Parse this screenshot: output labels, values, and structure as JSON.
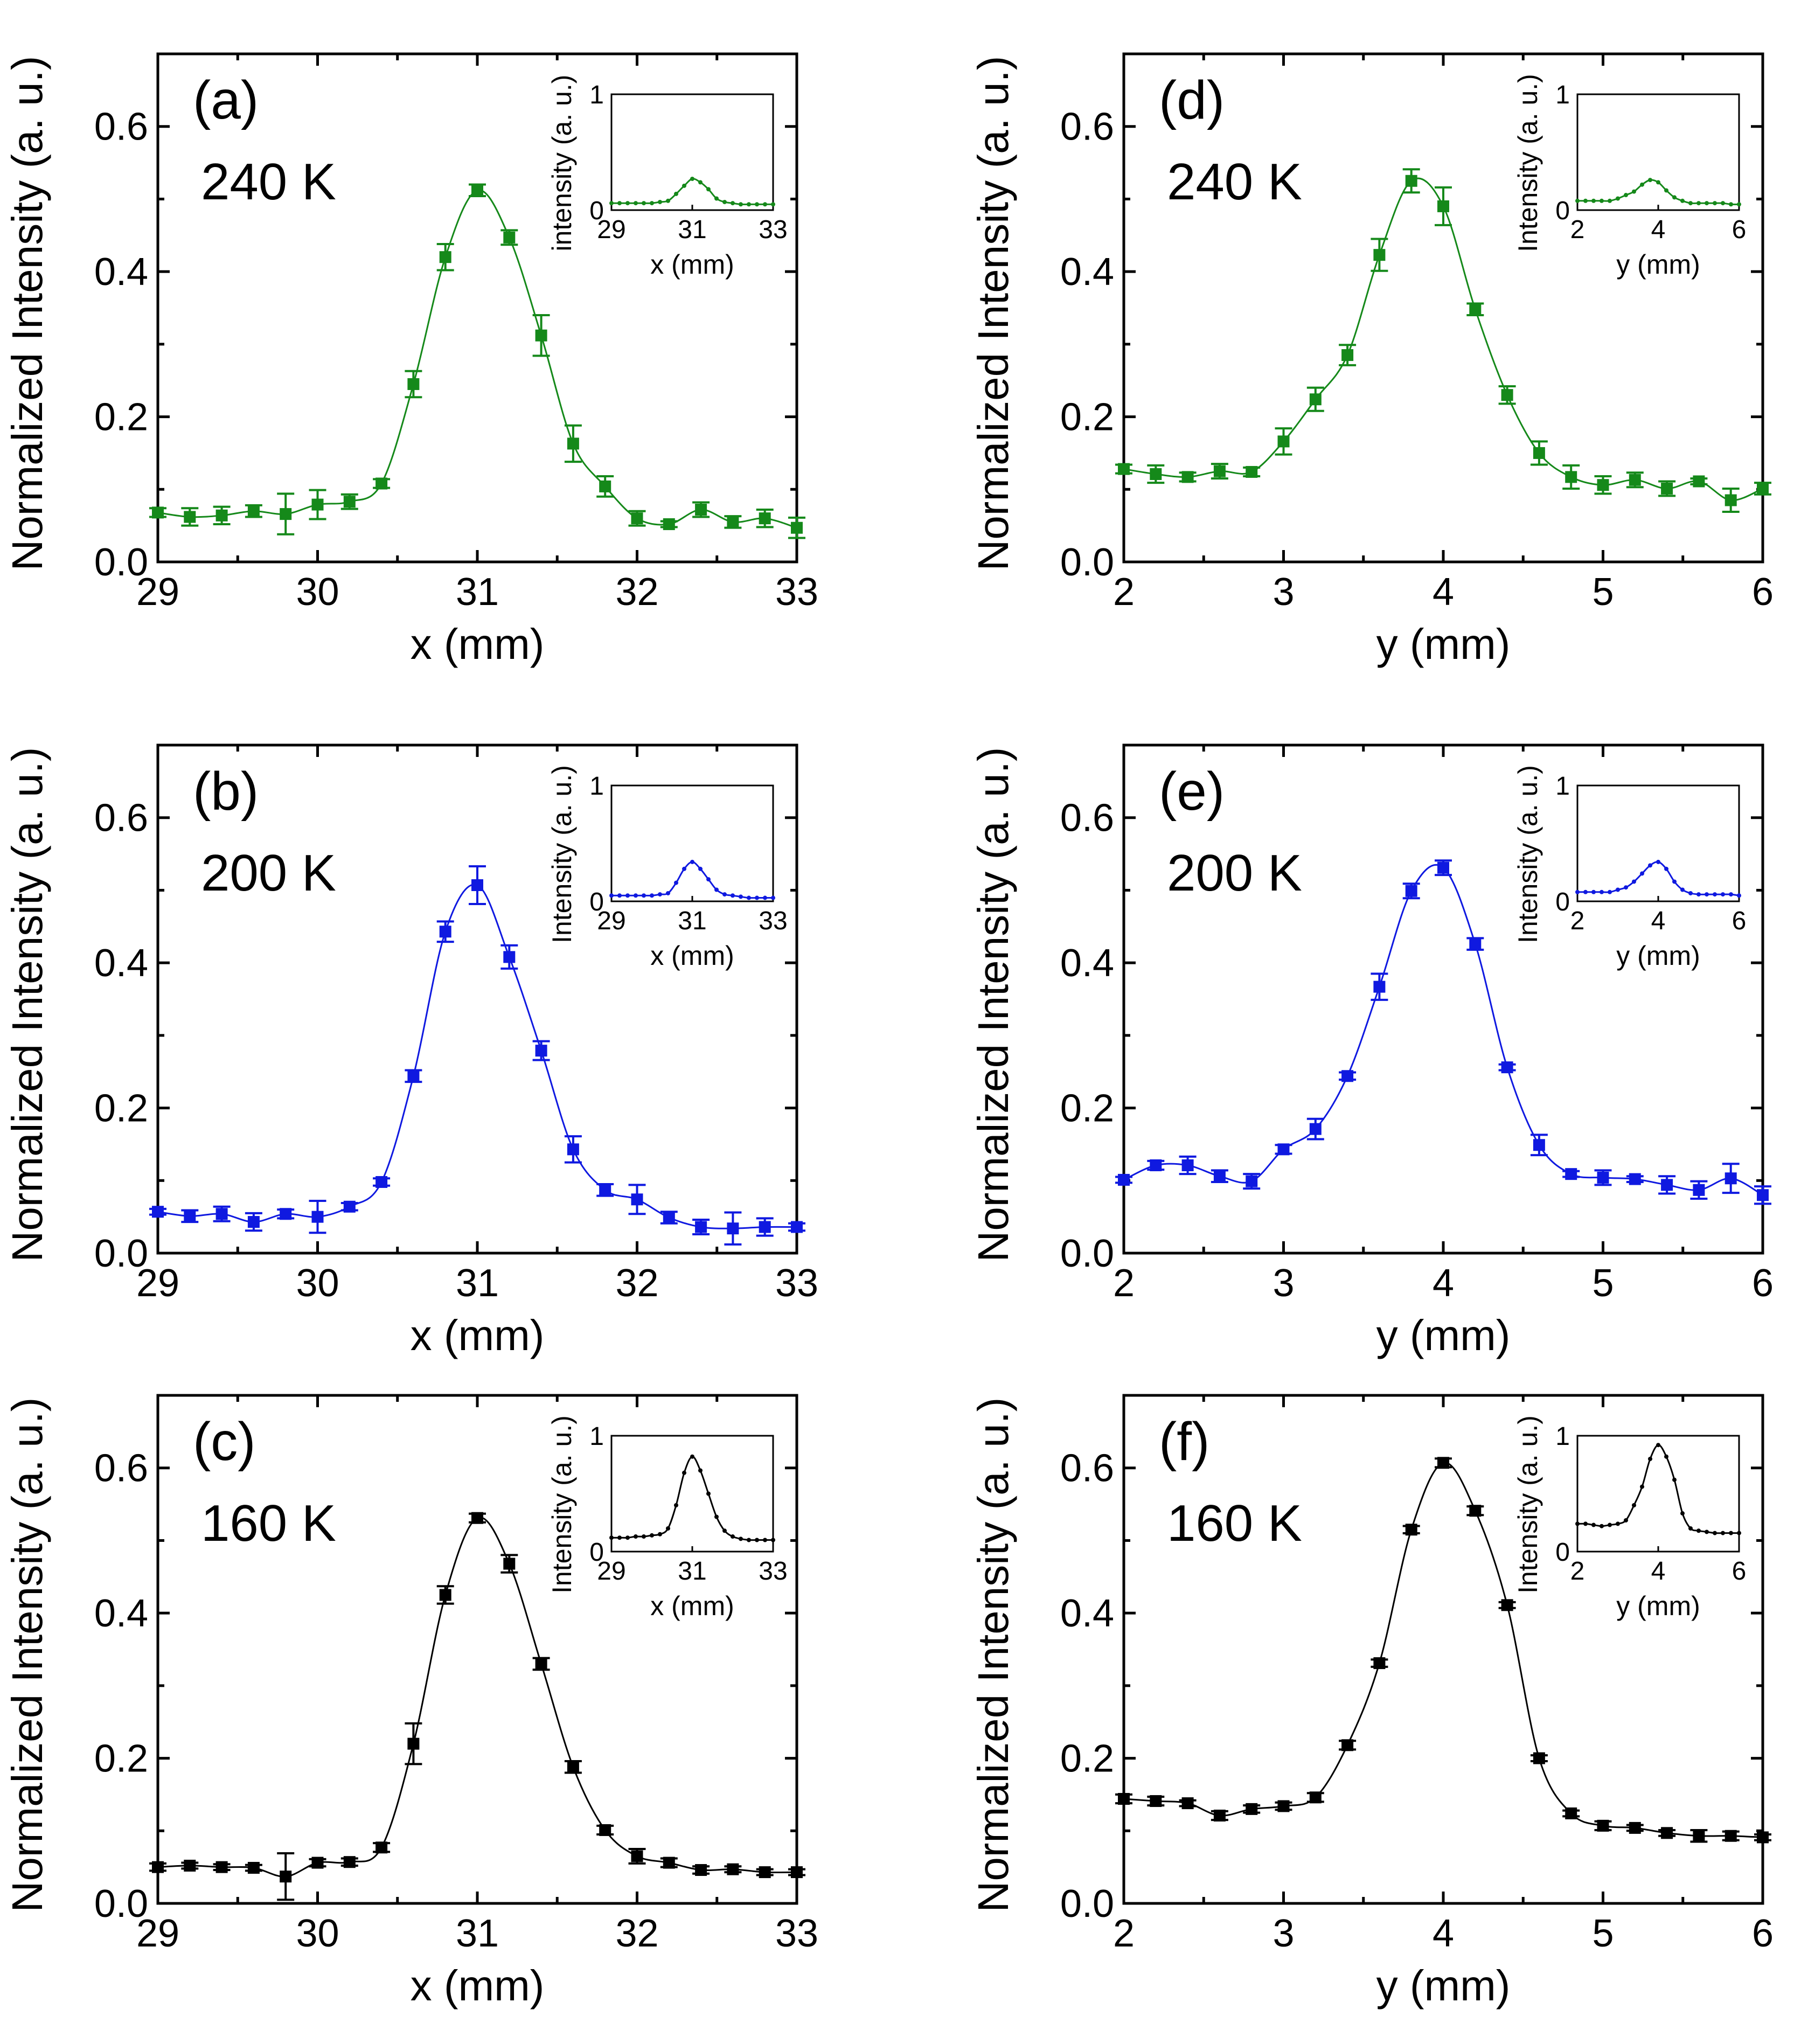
{
  "figure": {
    "colors": {
      "240 K": "#15891a",
      "200 K": "#0f19e0",
      "160 K": "#000000"
    },
    "main_ylabel": "Normalized Intensity (a. u.)"
  },
  "chart_data": [
    {
      "id": "a",
      "tag": "(a)",
      "type": "scatter",
      "temperature": "240 K",
      "color": "#15891a",
      "xlabel": "x (mm)",
      "ylabel": "Normalized Intensity (a. u.)",
      "xlim": [
        29,
        33
      ],
      "ylim": [
        0,
        0.7
      ],
      "xticks": [
        "29",
        "30",
        "31",
        "32",
        "33"
      ],
      "yticks": [
        "0.0",
        "0.2",
        "0.4",
        "0.6"
      ],
      "x": [
        29.0,
        29.2,
        29.4,
        29.6,
        29.8,
        30.0,
        30.2,
        30.4,
        30.6,
        30.8,
        31.0,
        31.2,
        31.4,
        31.6,
        31.8,
        32.0,
        32.2,
        32.4,
        32.6,
        32.8,
        33.0
      ],
      "y": [
        0.068,
        0.062,
        0.064,
        0.07,
        0.066,
        0.079,
        0.083,
        0.108,
        0.245,
        0.42,
        0.512,
        0.447,
        0.312,
        0.163,
        0.104,
        0.06,
        0.052,
        0.072,
        0.055,
        0.06,
        0.047
      ],
      "yerr": [
        0.006,
        0.012,
        0.012,
        0.008,
        0.028,
        0.02,
        0.01,
        0.006,
        0.018,
        0.018,
        0.008,
        0.01,
        0.028,
        0.025,
        0.014,
        0.01,
        0.004,
        0.01,
        0.008,
        0.012,
        0.014
      ],
      "inset": {
        "xlabel": "x (mm)",
        "ylabel": "intensity (a. u.)",
        "xlim": [
          29,
          33
        ],
        "ylim": [
          0,
          1
        ],
        "xticks": [
          "29",
          "31",
          "33"
        ],
        "yticks": [
          "0",
          "1"
        ],
        "y": [
          0.06,
          0.06,
          0.06,
          0.06,
          0.06,
          0.06,
          0.07,
          0.08,
          0.14,
          0.21,
          0.27,
          0.24,
          0.18,
          0.1,
          0.07,
          0.06,
          0.05,
          0.05,
          0.05,
          0.05,
          0.05
        ]
      }
    },
    {
      "id": "b",
      "tag": "(b)",
      "type": "scatter",
      "temperature": "200 K",
      "color": "#0f19e0",
      "xlabel": "x (mm)",
      "ylabel": "Normalized Intensity (a. u.)",
      "xlim": [
        29,
        33
      ],
      "ylim": [
        0,
        0.7
      ],
      "xticks": [
        "29",
        "30",
        "31",
        "32",
        "33"
      ],
      "yticks": [
        "0.0",
        "0.2",
        "0.4",
        "0.6"
      ],
      "x": [
        29.0,
        29.2,
        29.4,
        29.6,
        29.8,
        30.0,
        30.2,
        30.4,
        30.6,
        30.8,
        31.0,
        31.2,
        31.4,
        31.6,
        31.8,
        32.0,
        32.2,
        32.4,
        32.6,
        32.8,
        33.0
      ],
      "y": [
        0.057,
        0.051,
        0.054,
        0.043,
        0.054,
        0.05,
        0.064,
        0.098,
        0.244,
        0.443,
        0.507,
        0.408,
        0.279,
        0.143,
        0.087,
        0.074,
        0.049,
        0.036,
        0.034,
        0.036,
        0.036
      ],
      "yerr": [
        0.004,
        0.008,
        0.01,
        0.012,
        0.006,
        0.022,
        0.005,
        0.005,
        0.008,
        0.014,
        0.026,
        0.016,
        0.013,
        0.018,
        0.008,
        0.02,
        0.008,
        0.01,
        0.022,
        0.012,
        0.005
      ],
      "inset": {
        "xlabel": "x (mm)",
        "ylabel": "Intensity (a. u.)",
        "xlim": [
          29,
          33
        ],
        "ylim": [
          0,
          1
        ],
        "xticks": [
          "29",
          "31",
          "33"
        ],
        "yticks": [
          "0",
          "1"
        ],
        "y": [
          0.05,
          0.05,
          0.05,
          0.05,
          0.05,
          0.05,
          0.06,
          0.07,
          0.16,
          0.28,
          0.34,
          0.28,
          0.19,
          0.1,
          0.06,
          0.05,
          0.04,
          0.03,
          0.03,
          0.03,
          0.03
        ]
      }
    },
    {
      "id": "c",
      "tag": "(c)",
      "type": "scatter",
      "temperature": "160 K",
      "color": "#000000",
      "xlabel": "x (mm)",
      "ylabel": "Normalized Intensity (a. u.)",
      "xlim": [
        29,
        33
      ],
      "ylim": [
        0,
        0.7
      ],
      "xticks": [
        "29",
        "30",
        "31",
        "32",
        "33"
      ],
      "yticks": [
        "0.0",
        "0.2",
        "0.4",
        "0.6"
      ],
      "x": [
        29.0,
        29.2,
        29.4,
        29.6,
        29.8,
        30.0,
        30.2,
        30.4,
        30.6,
        30.8,
        31.0,
        31.2,
        31.4,
        31.6,
        31.8,
        32.0,
        32.2,
        32.4,
        32.6,
        32.8,
        33.0
      ],
      "y": [
        0.05,
        0.052,
        0.05,
        0.049,
        0.037,
        0.056,
        0.057,
        0.077,
        0.22,
        0.425,
        0.531,
        0.468,
        0.33,
        0.188,
        0.101,
        0.065,
        0.056,
        0.046,
        0.047,
        0.043,
        0.043
      ],
      "yerr": [
        0.005,
        0.004,
        0.004,
        0.004,
        0.032,
        0.005,
        0.005,
        0.006,
        0.028,
        0.012,
        0.006,
        0.012,
        0.008,
        0.008,
        0.006,
        0.01,
        0.006,
        0.005,
        0.004,
        0.004,
        0.004
      ],
      "inset": {
        "xlabel": "x (mm)",
        "ylabel": "Intensity (a. u.)",
        "xlim": [
          29,
          33
        ],
        "ylim": [
          0,
          1
        ],
        "xticks": [
          "29",
          "31",
          "33"
        ],
        "yticks": [
          "0",
          "1"
        ],
        "y": [
          0.12,
          0.12,
          0.12,
          0.13,
          0.13,
          0.14,
          0.15,
          0.2,
          0.4,
          0.68,
          0.82,
          0.7,
          0.5,
          0.3,
          0.18,
          0.13,
          0.11,
          0.1,
          0.1,
          0.1,
          0.1
        ]
      }
    },
    {
      "id": "d",
      "tag": "(d)",
      "type": "scatter",
      "temperature": "240 K",
      "color": "#15891a",
      "xlabel": "y (mm)",
      "ylabel": "Normalized Intensity (a. u.)",
      "xlim": [
        2,
        6
      ],
      "ylim": [
        0,
        0.7
      ],
      "xticks": [
        "2",
        "3",
        "4",
        "5",
        "6"
      ],
      "yticks": [
        "0.0",
        "0.2",
        "0.4",
        "0.6"
      ],
      "x": [
        2.0,
        2.2,
        2.4,
        2.6,
        2.8,
        3.0,
        3.2,
        3.4,
        3.6,
        3.8,
        4.0,
        4.2,
        4.4,
        4.6,
        4.8,
        5.0,
        5.2,
        5.4,
        5.6,
        5.8,
        6.0
      ],
      "y": [
        0.128,
        0.121,
        0.117,
        0.125,
        0.124,
        0.166,
        0.224,
        0.285,
        0.423,
        0.525,
        0.49,
        0.348,
        0.23,
        0.15,
        0.117,
        0.106,
        0.113,
        0.101,
        0.111,
        0.085,
        0.101
      ],
      "yerr": [
        0.006,
        0.012,
        0.006,
        0.01,
        0.006,
        0.018,
        0.016,
        0.014,
        0.022,
        0.016,
        0.026,
        0.008,
        0.012,
        0.016,
        0.016,
        0.012,
        0.01,
        0.01,
        0.004,
        0.016,
        0.008
      ],
      "inset": {
        "xlabel": "y (mm)",
        "ylabel": "Intensity (a. u.)",
        "xlim": [
          2,
          6
        ],
        "ylim": [
          0,
          1
        ],
        "xticks": [
          "2",
          "4",
          "6"
        ],
        "yticks": [
          "0",
          "1"
        ],
        "y": [
          0.08,
          0.08,
          0.08,
          0.08,
          0.08,
          0.1,
          0.13,
          0.16,
          0.22,
          0.26,
          0.24,
          0.17,
          0.11,
          0.08,
          0.06,
          0.06,
          0.06,
          0.06,
          0.06,
          0.05,
          0.05
        ]
      }
    },
    {
      "id": "e",
      "tag": "(e)",
      "type": "scatter",
      "temperature": "200 K",
      "color": "#0f19e0",
      "xlabel": "y (mm)",
      "ylabel": "Normalized Intensity (a. u.)",
      "xlim": [
        2,
        6
      ],
      "ylim": [
        0,
        0.7
      ],
      "xticks": [
        "2",
        "3",
        "4",
        "5",
        "6"
      ],
      "yticks": [
        "0.0",
        "0.2",
        "0.4",
        "0.6"
      ],
      "x": [
        2.0,
        2.2,
        2.4,
        2.6,
        2.8,
        3.0,
        3.2,
        3.4,
        3.6,
        3.8,
        4.0,
        4.2,
        4.4,
        4.6,
        4.8,
        5.0,
        5.2,
        5.4,
        5.6,
        5.8,
        6.0
      ],
      "y": [
        0.101,
        0.121,
        0.121,
        0.106,
        0.099,
        0.143,
        0.171,
        0.244,
        0.367,
        0.499,
        0.531,
        0.426,
        0.256,
        0.149,
        0.109,
        0.104,
        0.102,
        0.094,
        0.087,
        0.103,
        0.08
      ],
      "yerr": [
        0.004,
        0.006,
        0.012,
        0.008,
        0.01,
        0.006,
        0.014,
        0.005,
        0.018,
        0.01,
        0.01,
        0.008,
        0.004,
        0.014,
        0.004,
        0.01,
        0.004,
        0.012,
        0.012,
        0.02,
        0.012
      ],
      "inset": {
        "xlabel": "y (mm)",
        "ylabel": "Intensity (a. u.)",
        "xlim": [
          2,
          6
        ],
        "ylim": [
          0,
          1
        ],
        "xticks": [
          "2",
          "4",
          "6"
        ],
        "yticks": [
          "0",
          "1"
        ],
        "y": [
          0.08,
          0.08,
          0.08,
          0.08,
          0.08,
          0.1,
          0.12,
          0.17,
          0.24,
          0.31,
          0.34,
          0.28,
          0.17,
          0.1,
          0.07,
          0.06,
          0.06,
          0.06,
          0.06,
          0.06,
          0.05
        ]
      }
    },
    {
      "id": "f",
      "tag": "(f)",
      "type": "scatter",
      "temperature": "160 K",
      "color": "#000000",
      "xlabel": "y (mm)",
      "ylabel": "Normalized Intensity (a. u.)",
      "xlim": [
        2,
        6
      ],
      "ylim": [
        0,
        0.7
      ],
      "xticks": [
        "2",
        "3",
        "4",
        "5",
        "6"
      ],
      "yticks": [
        "0.0",
        "0.2",
        "0.4",
        "0.6"
      ],
      "x": [
        2.0,
        2.2,
        2.4,
        2.6,
        2.8,
        3.0,
        3.2,
        3.4,
        3.6,
        3.8,
        4.0,
        4.2,
        4.4,
        4.6,
        4.8,
        5.0,
        5.2,
        5.4,
        5.6,
        5.8,
        6.0
      ],
      "y": [
        0.144,
        0.141,
        0.138,
        0.121,
        0.13,
        0.134,
        0.146,
        0.218,
        0.331,
        0.515,
        0.607,
        0.541,
        0.411,
        0.2,
        0.124,
        0.107,
        0.104,
        0.097,
        0.093,
        0.093,
        0.091
      ],
      "yerr": [
        0.006,
        0.006,
        0.004,
        0.006,
        0.005,
        0.005,
        0.006,
        0.006,
        0.005,
        0.005,
        0.006,
        0.006,
        0.004,
        0.004,
        0.004,
        0.006,
        0.004,
        0.004,
        0.008,
        0.006,
        0.004
      ],
      "inset": {
        "xlabel": "y (mm)",
        "ylabel": "Intensity (a. u.)",
        "xlim": [
          2,
          6
        ],
        "ylim": [
          0,
          1
        ],
        "xticks": [
          "2",
          "4",
          "6"
        ],
        "yticks": [
          "0",
          "1"
        ],
        "y": [
          0.24,
          0.24,
          0.23,
          0.22,
          0.23,
          0.24,
          0.27,
          0.4,
          0.56,
          0.8,
          0.92,
          0.82,
          0.62,
          0.33,
          0.2,
          0.18,
          0.17,
          0.16,
          0.16,
          0.16,
          0.16
        ]
      }
    }
  ]
}
